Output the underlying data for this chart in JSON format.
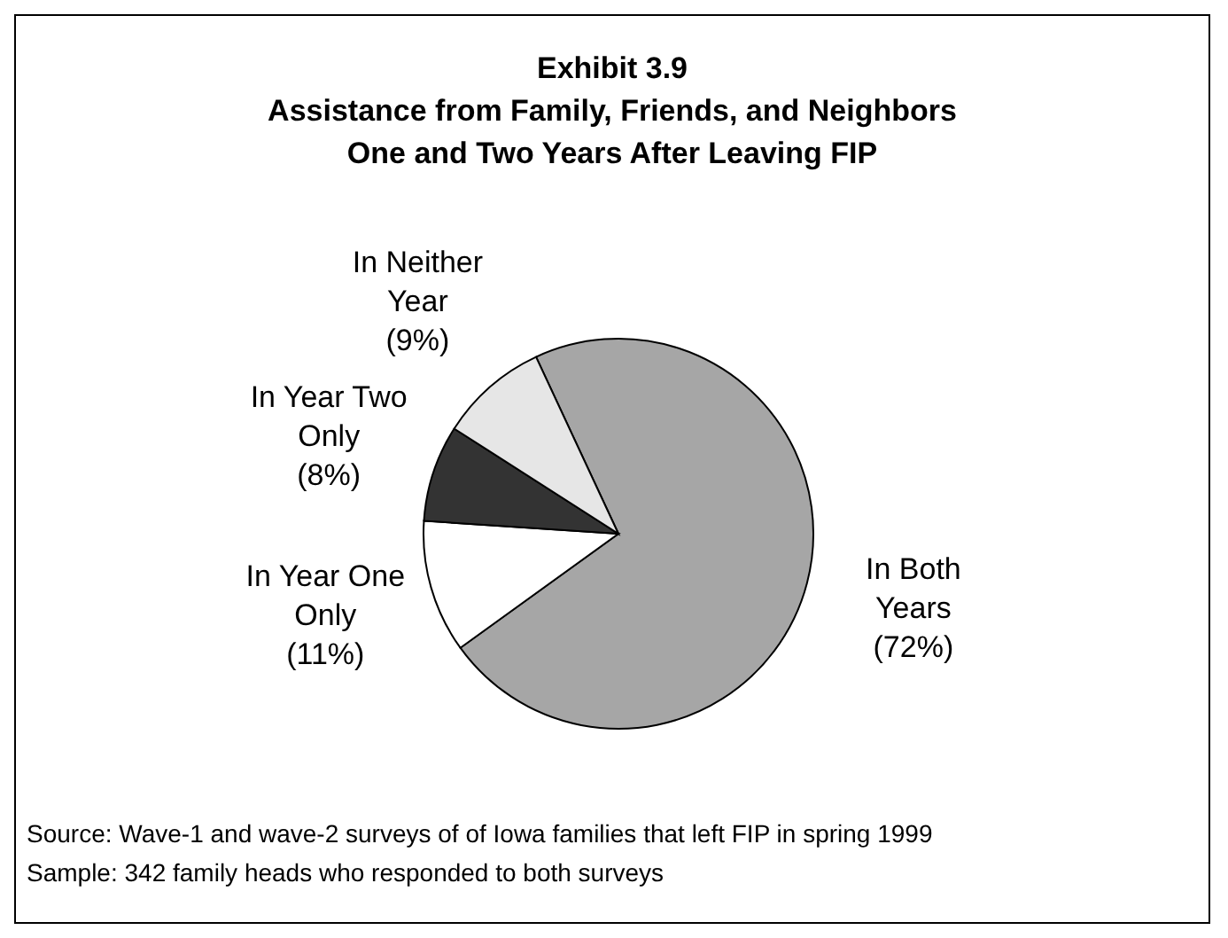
{
  "chart_data": {
    "type": "pie",
    "title": "Exhibit 3.9",
    "subtitle": "Assistance from Family, Friends, and Neighbors One and Two Years After Leaving FIP",
    "categories": [
      "In Both Years",
      "In Year One Only",
      "In Year Two Only",
      "In Neither Year"
    ],
    "values": [
      72,
      11,
      8,
      9
    ],
    "colors": [
      "#a6a6a6",
      "#ffffff",
      "#333333",
      "#e6e6e6"
    ],
    "value_labels": [
      "(72%)",
      "(11%)",
      "(8%)",
      "(9%)"
    ],
    "legend": false,
    "annotations": [
      "Source: Wave-1 and wave-2 surveys of of Iowa families that left FIP in spring 1999",
      "Sample: 342 family heads who responded to both surveys"
    ]
  }
}
